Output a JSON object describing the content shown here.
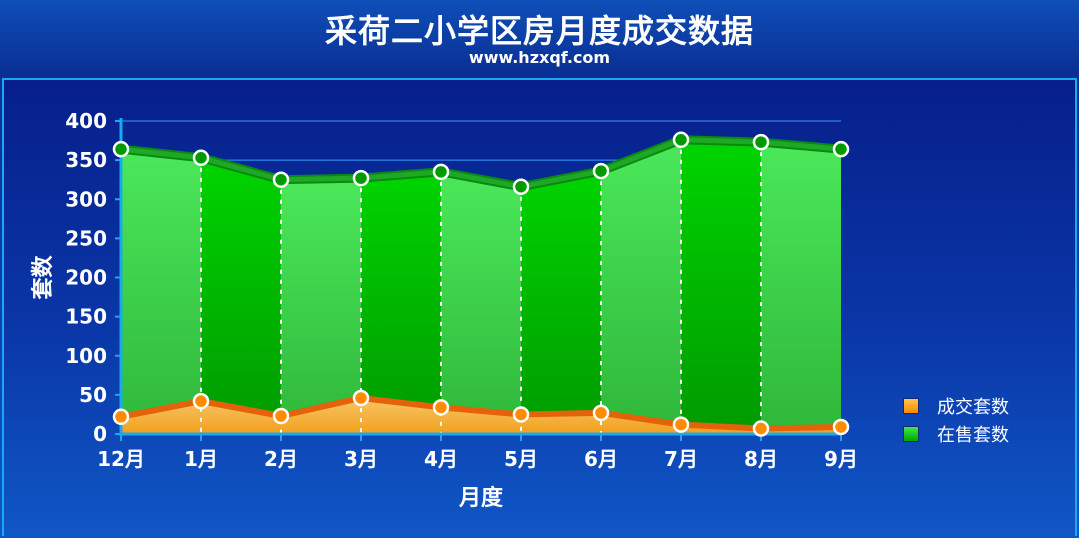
{
  "header": {
    "title": "采荷二小学区房月度成交数据",
    "subtitle": "www.hzxqf.com"
  },
  "chart_data": {
    "type": "area",
    "title": "采荷二小学区房月度成交数据",
    "xlabel": "月度",
    "ylabel": "套数",
    "categories": [
      "12月",
      "1月",
      "2月",
      "3月",
      "4月",
      "5月",
      "6月",
      "7月",
      "8月",
      "9月"
    ],
    "ylim": [
      0,
      400
    ],
    "yticks": [
      0,
      50,
      100,
      150,
      200,
      250,
      300,
      350,
      400
    ],
    "grid": true,
    "legend_position": "right",
    "series": [
      {
        "name": "成交套数",
        "values": [
          22,
          42,
          23,
          46,
          34,
          25,
          27,
          12,
          7,
          9
        ],
        "color": "#ff8c00"
      },
      {
        "name": "在售套数",
        "values": [
          364,
          353,
          325,
          327,
          335,
          316,
          336,
          376,
          373,
          364
        ],
        "color": "#00cc00"
      }
    ]
  }
}
